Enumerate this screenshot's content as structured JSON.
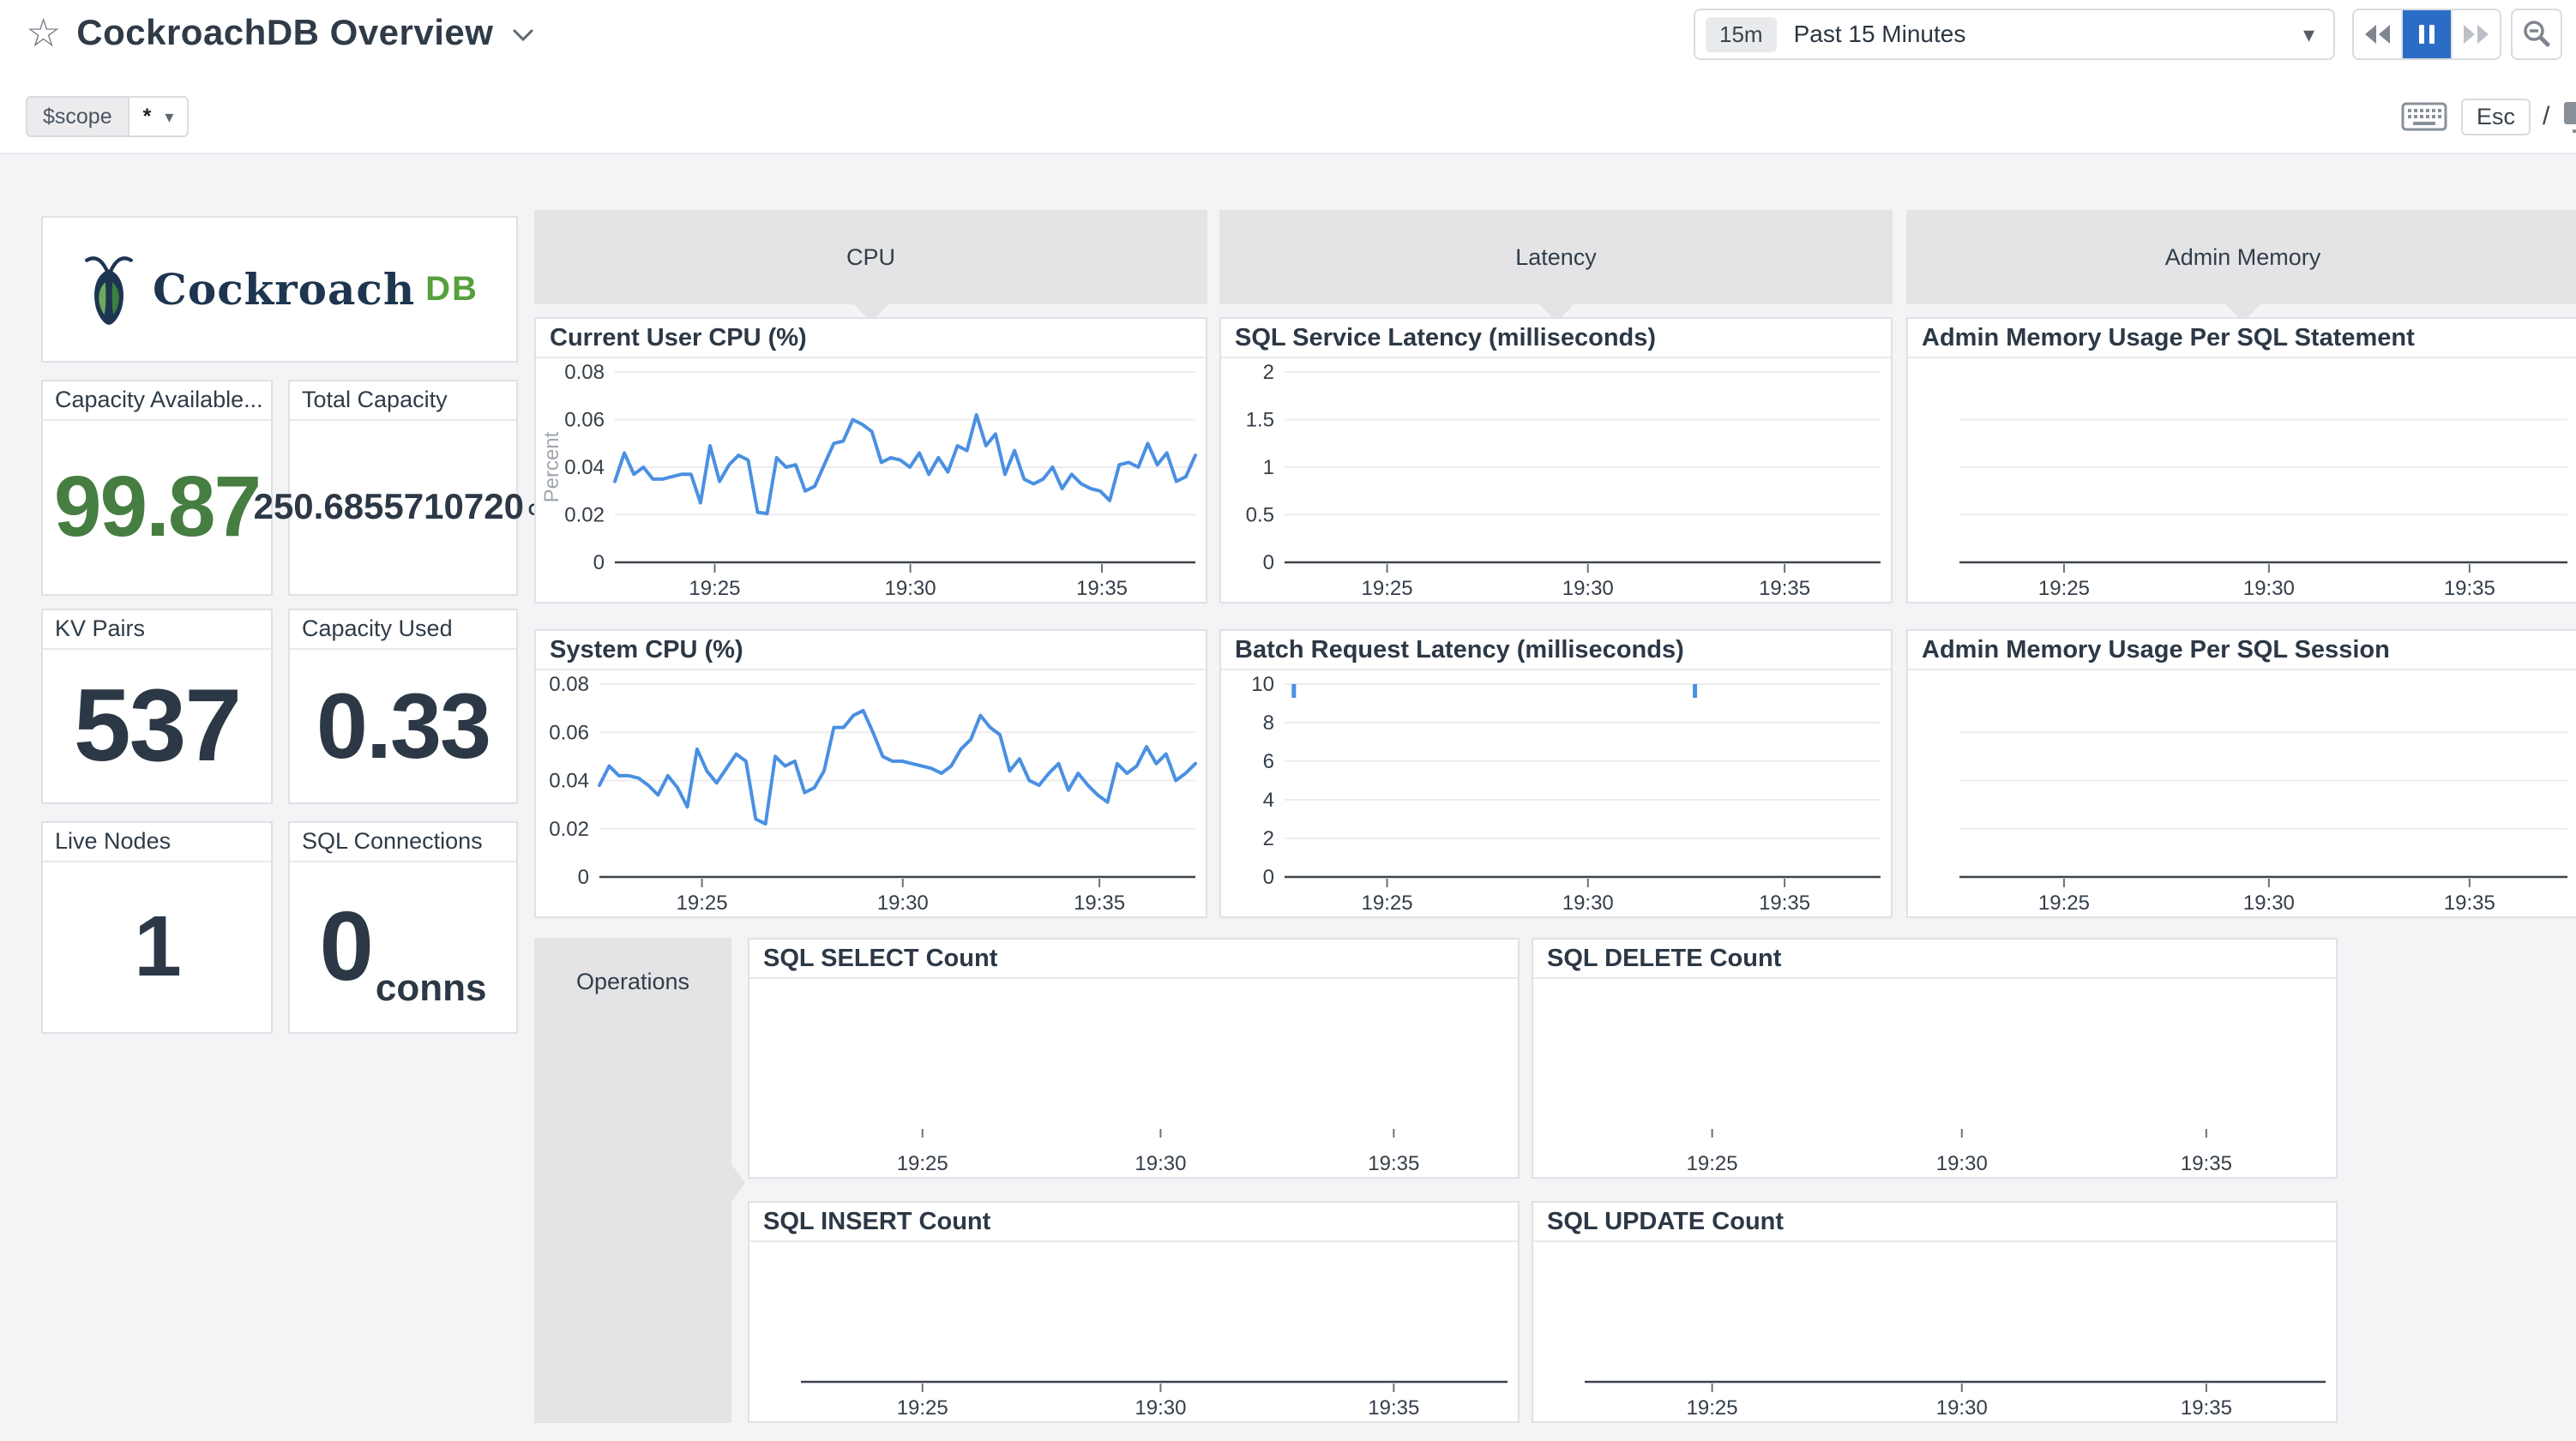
{
  "header": {
    "title": "CockroachDB Overview",
    "scope_label": "$scope",
    "scope_value": "*",
    "esc_label": "Esc",
    "slash": "/"
  },
  "time": {
    "badge": "15m",
    "label": "Past 15 Minutes"
  },
  "logo": {
    "word": "Cockroach",
    "suffix": "DB"
  },
  "stats": [
    {
      "title": "Capacity Available...",
      "value": "99.87",
      "unit": ""
    },
    {
      "title": "Total Capacity",
      "value": "250.6855710720",
      "unit": "GB"
    },
    {
      "title": "KV Pairs",
      "value": "537",
      "unit": ""
    },
    {
      "title": "Capacity Used",
      "value": "0.33",
      "unit": ""
    },
    {
      "title": "Live Nodes",
      "value": "1",
      "unit": ""
    },
    {
      "title": "SQL Connections",
      "value": "0",
      "unit": "conns"
    }
  ],
  "groups": {
    "cpu": "CPU",
    "latency": "Latency",
    "admin_memory": "Admin Memory",
    "operations": "Operations"
  },
  "icons": {
    "star": "☆",
    "caret_down": "▾",
    "chevron_down": "v",
    "rewind": "double-left-triangles",
    "pause": "two-bars",
    "fast_forward": "double-right-triangles",
    "zoom_out": "magnifier-minus",
    "keyboard": "keyboard",
    "monitor": "monitor"
  },
  "colors": {
    "accent_blue": "#4a90e2",
    "active_button_blue": "#2b6dc6",
    "stat_green": "#467d41",
    "stat_navy": "#2c3845",
    "logo_navy": "#1e3550",
    "logo_green": "#57a03c",
    "group_header_bg": "#e4e4e7",
    "panel_border": "#dfe1e5"
  },
  "chart_data": [
    {
      "id": "current-user-cpu",
      "type": "line",
      "title": "Current User CPU (%)",
      "ylabel": "Percent",
      "ylim": [
        0,
        0.08
      ],
      "yticks": [
        0.08,
        0.06,
        0.04,
        0.02,
        0
      ],
      "ytick_labels": [
        "0.08",
        "0.06",
        "0.04",
        "0.02",
        "0"
      ],
      "xticks": [
        "19:25",
        "19:30",
        "19:35"
      ],
      "x_range": [
        "19:22",
        "19:37"
      ],
      "grid": true,
      "axis_line": true,
      "legend": "none",
      "series": [
        {
          "name": "current user cpu",
          "values": [
            0.034,
            0.046,
            0.037,
            0.04,
            0.035,
            0.035,
            0.036,
            0.037,
            0.037,
            0.025,
            0.049,
            0.034,
            0.041,
            0.045,
            0.043,
            0.021,
            0.0205,
            0.044,
            0.04,
            0.041,
            0.03,
            0.032,
            0.041,
            0.05,
            0.051,
            0.06,
            0.058,
            0.055,
            0.042,
            0.044,
            0.043,
            0.04,
            0.046,
            0.037,
            0.044,
            0.038,
            0.049,
            0.047,
            0.062,
            0.049,
            0.054,
            0.037,
            0.047,
            0.035,
            0.033,
            0.035,
            0.04,
            0.031,
            0.037,
            0.033,
            0.031,
            0.03,
            0.026,
            0.041,
            0.042,
            0.04,
            0.05,
            0.041,
            0.046,
            0.034,
            0.036,
            0.045
          ]
        }
      ]
    },
    {
      "id": "sql-service-latency",
      "type": "line",
      "title": "SQL Service Latency (milliseconds)",
      "ylim": [
        0,
        2
      ],
      "yticks": [
        2,
        1.5,
        1,
        0.5,
        0
      ],
      "ytick_labels": [
        "2",
        "1.5",
        "1",
        "0.5",
        "0"
      ],
      "xticks": [
        "19:25",
        "19:30",
        "19:35"
      ],
      "x_range": [
        "19:22",
        "19:37"
      ],
      "grid": true,
      "axis_line": true,
      "series": []
    },
    {
      "id": "admin-memory-per-sql-statement",
      "type": "line",
      "title": "Admin Memory Usage Per SQL Statement",
      "yticks": null,
      "gridline_count": 3,
      "xticks": [
        "19:25",
        "19:30",
        "19:35"
      ],
      "x_range": [
        "19:22",
        "19:37"
      ],
      "axis_line": true,
      "series": []
    },
    {
      "id": "system-cpu",
      "type": "line",
      "title": "System CPU (%)",
      "ylim": [
        0,
        0.08
      ],
      "yticks": [
        0.08,
        0.06,
        0.04,
        0.02,
        0
      ],
      "ytick_labels": [
        "0.08",
        "0.06",
        "0.04",
        "0.02",
        "0"
      ],
      "xticks": [
        "19:25",
        "19:30",
        "19:35"
      ],
      "x_range": [
        "19:22",
        "19:37"
      ],
      "grid": true,
      "axis_line": true,
      "legend": "none",
      "series": [
        {
          "name": "system cpu",
          "values": [
            0.038,
            0.046,
            0.042,
            0.042,
            0.041,
            0.038,
            0.034,
            0.042,
            0.037,
            0.029,
            0.053,
            0.044,
            0.039,
            0.045,
            0.051,
            0.048,
            0.024,
            0.022,
            0.05,
            0.046,
            0.048,
            0.035,
            0.037,
            0.044,
            0.062,
            0.062,
            0.067,
            0.069,
            0.06,
            0.05,
            0.048,
            0.048,
            0.047,
            0.046,
            0.045,
            0.043,
            0.046,
            0.053,
            0.057,
            0.067,
            0.062,
            0.059,
            0.044,
            0.049,
            0.04,
            0.038,
            0.043,
            0.047,
            0.036,
            0.043,
            0.038,
            0.034,
            0.031,
            0.047,
            0.043,
            0.046,
            0.054,
            0.047,
            0.051,
            0.04,
            0.043,
            0.047
          ]
        }
      ]
    },
    {
      "id": "batch-request-latency",
      "type": "line",
      "title": "Batch Request Latency (milliseconds)",
      "ylim": [
        0,
        10
      ],
      "yticks": [
        10,
        8,
        6,
        4,
        2,
        0
      ],
      "ytick_labels": [
        "10",
        "8",
        "6",
        "4",
        "2",
        "0"
      ],
      "xticks": [
        "19:25",
        "19:30",
        "19:35"
      ],
      "x_range": [
        "19:22",
        "19:37"
      ],
      "grid": true,
      "axis_line": true,
      "spikes": [
        {
          "time": "19:22:30",
          "value": 10,
          "x_frac": 0.012
        },
        {
          "time": "19:32:30",
          "value": 10,
          "x_frac": 0.685
        }
      ],
      "series": []
    },
    {
      "id": "admin-memory-per-sql-session",
      "type": "line",
      "title": "Admin Memory Usage Per SQL Session",
      "yticks": null,
      "gridline_count": 3,
      "xticks": [
        "19:25",
        "19:30",
        "19:35"
      ],
      "x_range": [
        "19:22",
        "19:37"
      ],
      "axis_line": true,
      "series": []
    },
    {
      "id": "sql-select-count",
      "type": "line",
      "title": "SQL SELECT Count",
      "yticks": null,
      "gridline_count": 0,
      "xticks": [
        "19:25",
        "19:30",
        "19:35"
      ],
      "x_range": [
        "19:22",
        "19:37"
      ],
      "axis_line": false,
      "series": []
    },
    {
      "id": "sql-delete-count",
      "type": "line",
      "title": "SQL DELETE Count",
      "yticks": null,
      "gridline_count": 0,
      "xticks": [
        "19:25",
        "19:30",
        "19:35"
      ],
      "x_range": [
        "19:22",
        "19:37"
      ],
      "axis_line": false,
      "series": []
    },
    {
      "id": "sql-insert-count",
      "type": "line",
      "title": "SQL INSERT Count",
      "yticks": null,
      "gridline_count": 0,
      "xticks": [
        "19:25",
        "19:30",
        "19:35"
      ],
      "x_range": [
        "19:22",
        "19:37"
      ],
      "axis_line": true,
      "series": []
    },
    {
      "id": "sql-update-count",
      "type": "line",
      "title": "SQL UPDATE Count",
      "yticks": null,
      "gridline_count": 0,
      "xticks": [
        "19:25",
        "19:30",
        "19:35"
      ],
      "x_range": [
        "19:22",
        "19:37"
      ],
      "axis_line": true,
      "series": []
    }
  ]
}
